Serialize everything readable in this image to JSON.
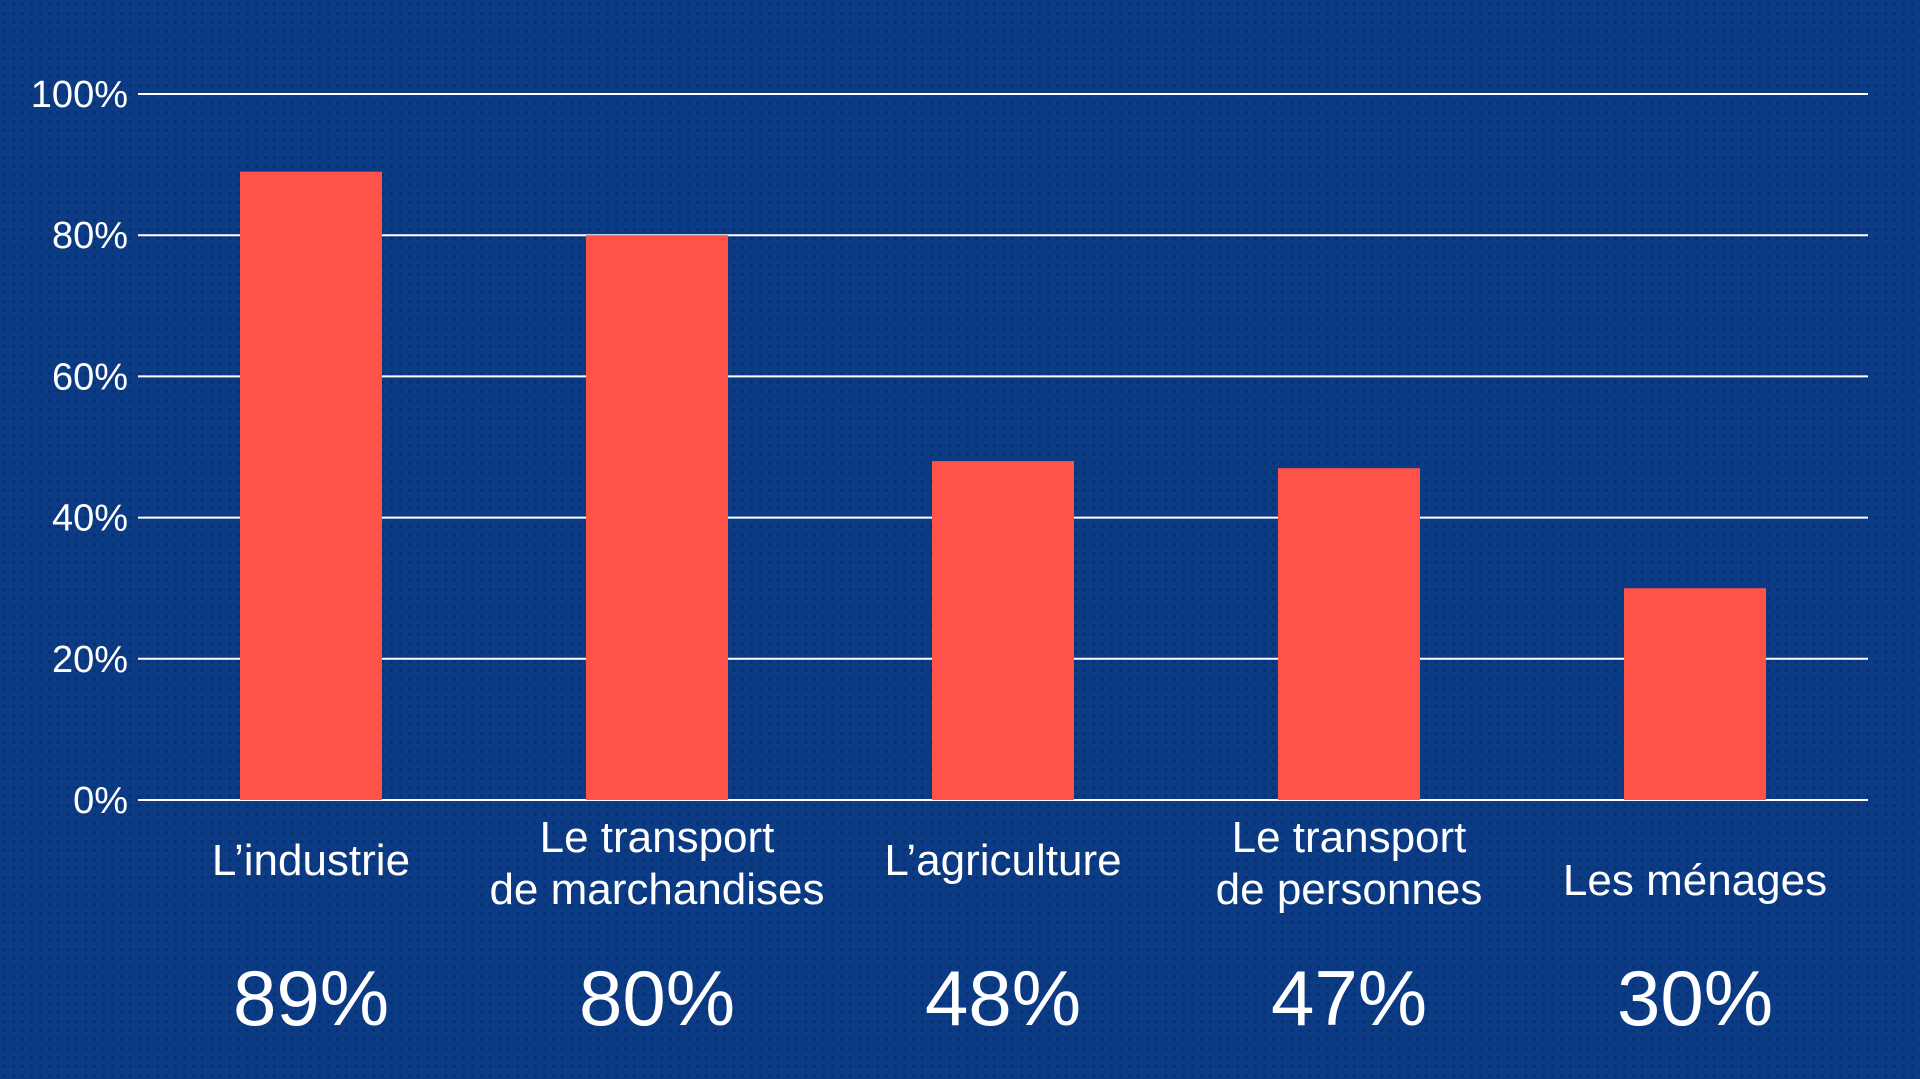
{
  "colors": {
    "background": "#0c3b85",
    "bar": "#ff5249",
    "grid": "#ffffff",
    "text": "#ffffff"
  },
  "chart_data": {
    "type": "bar",
    "categories": [
      [
        "L’industrie"
      ],
      [
        "Le transport",
        "de marchandises"
      ],
      [
        "L’agriculture"
      ],
      [
        "Le transport",
        "de personnes"
      ],
      [
        "Les ménages"
      ]
    ],
    "values": [
      89,
      80,
      48,
      47,
      30
    ],
    "value_labels": [
      "89%",
      "80%",
      "48%",
      "47%",
      "30%"
    ],
    "ylim": [
      0,
      100
    ],
    "yticks": [
      0,
      20,
      40,
      60,
      80,
      100
    ],
    "ytick_labels": [
      "0%",
      "20%",
      "40%",
      "60%",
      "80%",
      "100%"
    ],
    "grid": true
  }
}
